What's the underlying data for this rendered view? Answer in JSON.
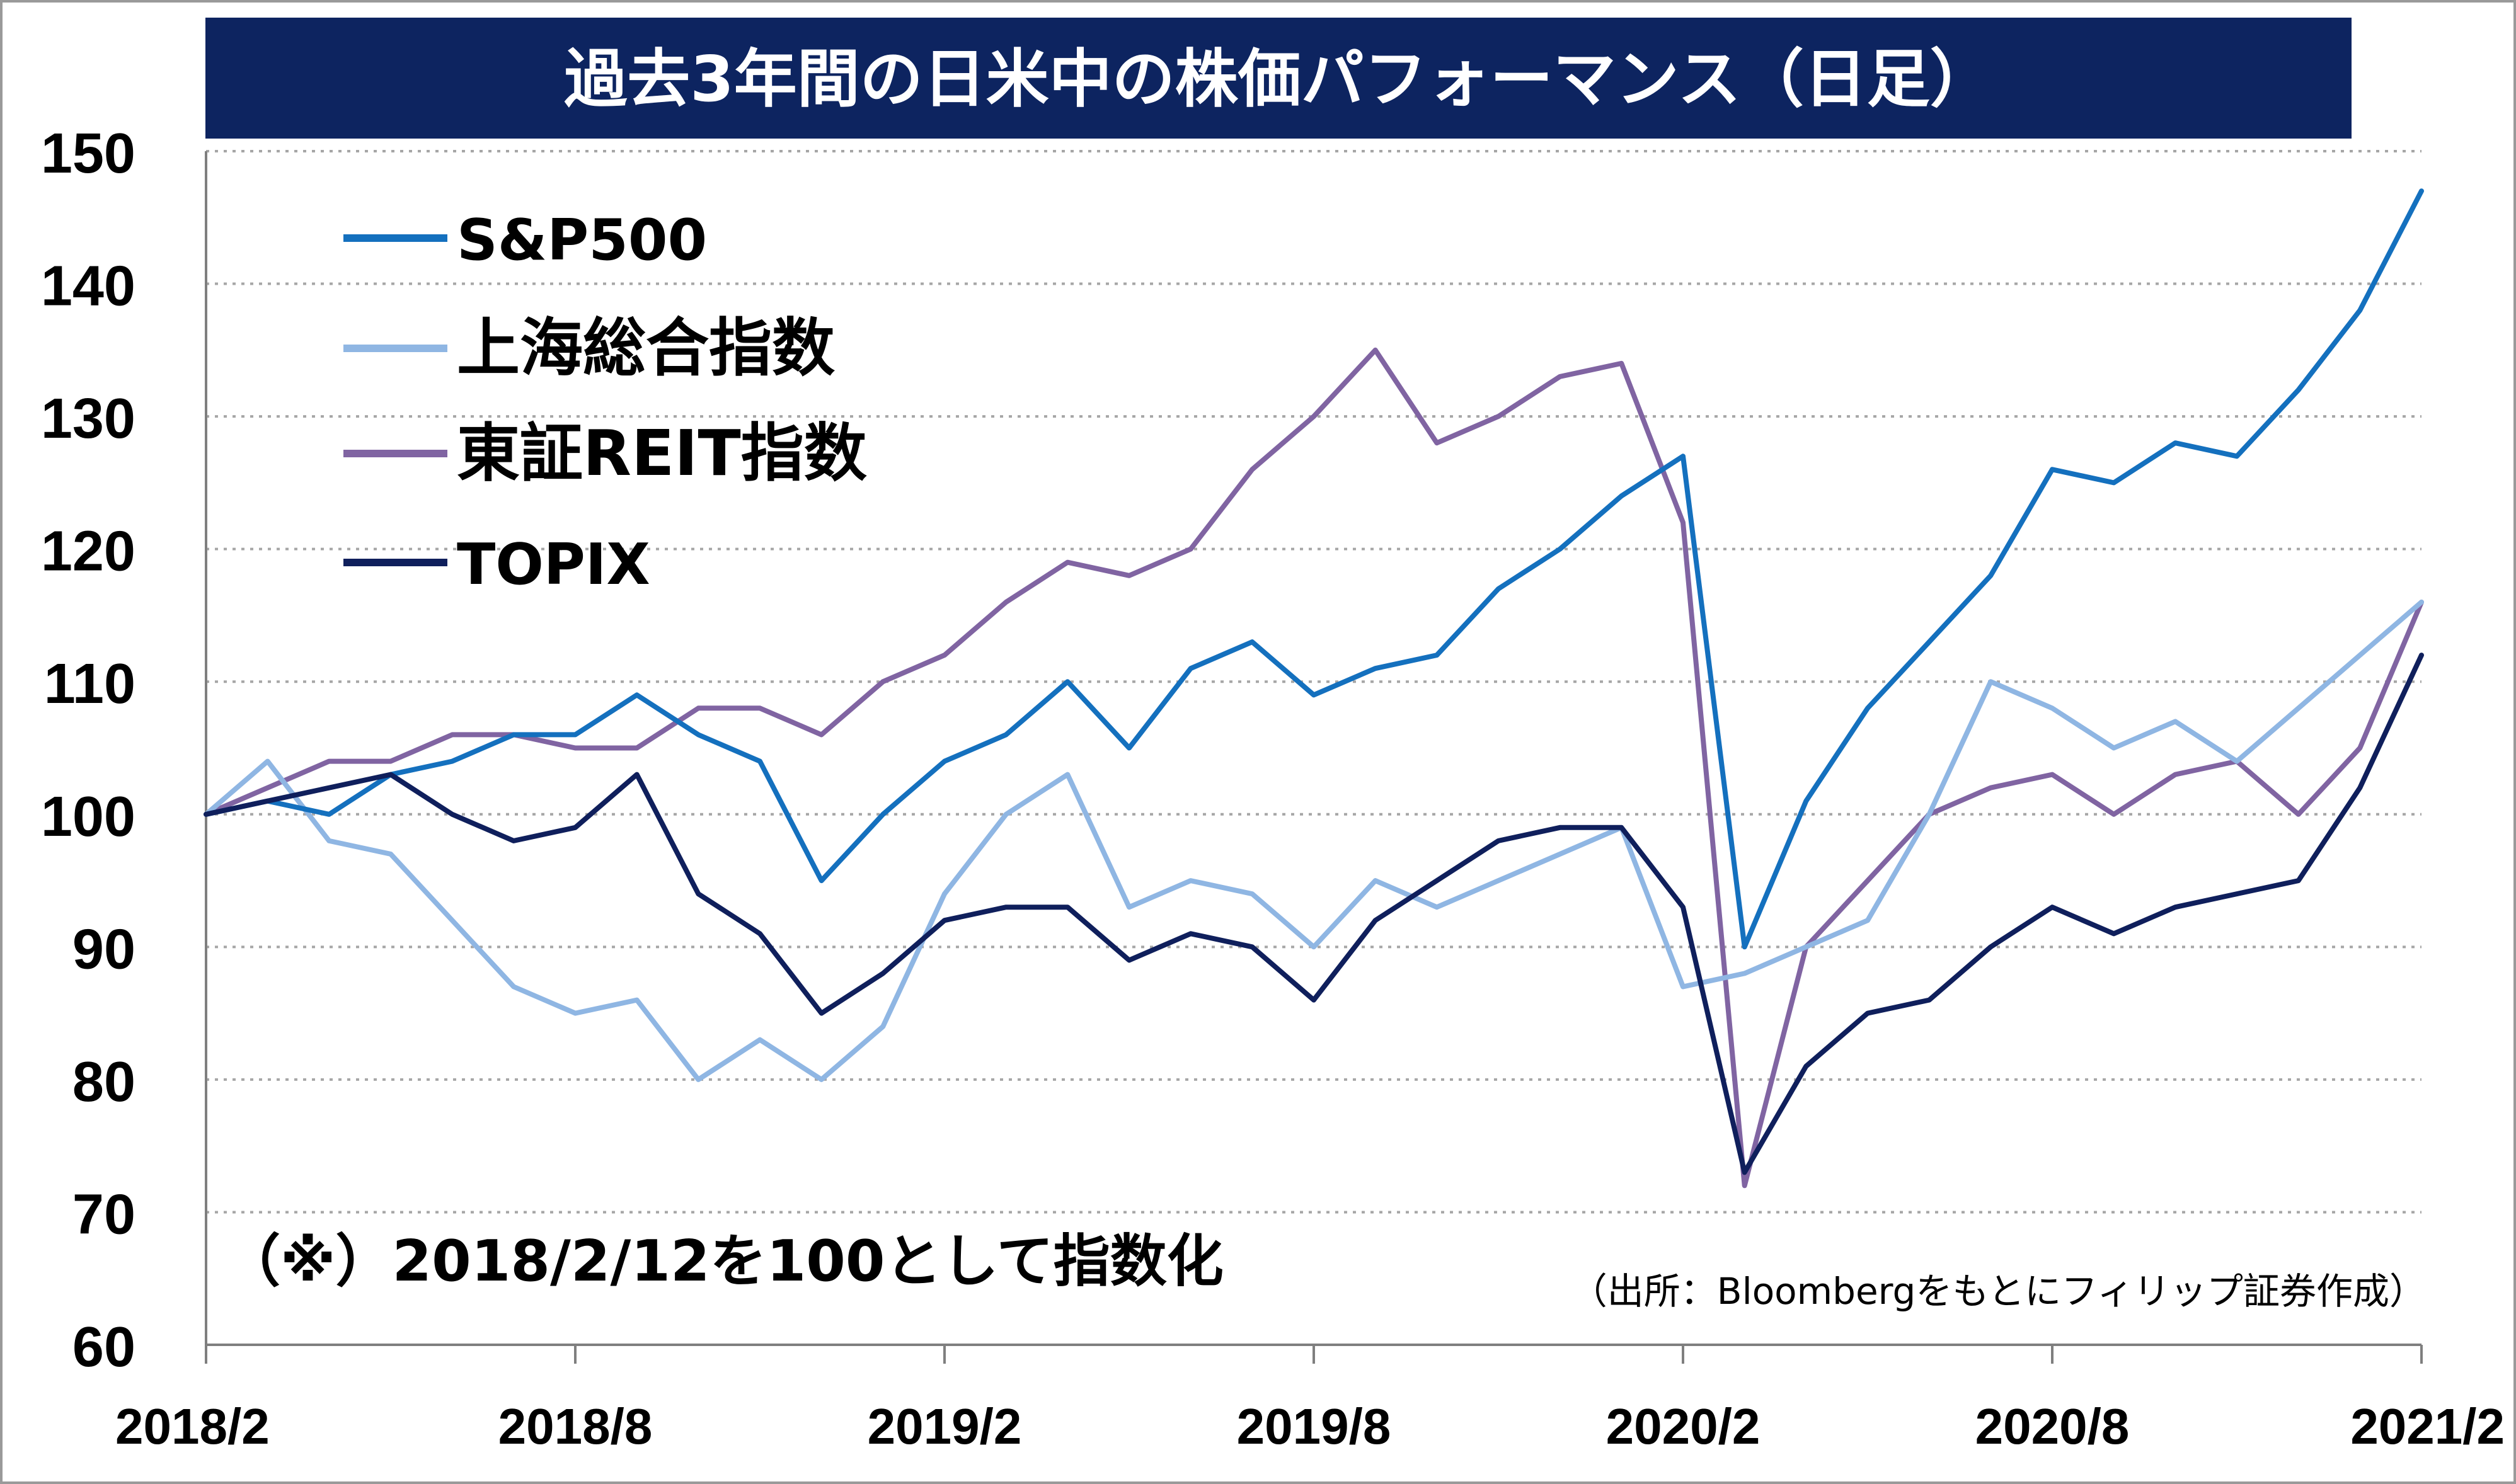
{
  "chart_data": {
    "type": "line",
    "title": "過去3年間の日米中の株価パフォーマンス（日足）",
    "note": "（※）2018/2/12を100として指数化",
    "source": "（出所：Bloombergをもとにフィリップ証券作成）",
    "ylim": [
      60,
      150
    ],
    "yticks": [
      "150",
      "140",
      "130",
      "120",
      "110",
      "100",
      "90",
      "80",
      "70",
      "60"
    ],
    "xlim": [
      "2018/2",
      "2021/2"
    ],
    "xticks": [
      "2018/2",
      "2018/8",
      "2019/2",
      "2019/8",
      "2020/2",
      "2020/8",
      "2021/2"
    ],
    "grid": true,
    "legend_position": "top-left",
    "x": [
      "2018/2",
      "2018/3",
      "2018/4",
      "2018/5",
      "2018/6",
      "2018/7",
      "2018/8",
      "2018/9",
      "2018/10",
      "2018/11",
      "2018/12",
      "2019/1",
      "2019/2",
      "2019/3",
      "2019/4",
      "2019/5",
      "2019/6",
      "2019/7",
      "2019/8",
      "2019/9",
      "2019/10",
      "2019/11",
      "2019/12",
      "2020/1",
      "2020/2",
      "2020/3",
      "2020/4",
      "2020/5",
      "2020/6",
      "2020/7",
      "2020/8",
      "2020/9",
      "2020/10",
      "2020/11",
      "2020/12",
      "2021/1",
      "2021/2"
    ],
    "series": [
      {
        "name": "S&P500",
        "color": "#1470be",
        "values": [
          100,
          101,
          100,
          103,
          104,
          106,
          106,
          109,
          106,
          104,
          95,
          100,
          104,
          106,
          110,
          105,
          111,
          113,
          109,
          111,
          112,
          117,
          120,
          124,
          127,
          90,
          101,
          108,
          113,
          118,
          126,
          125,
          128,
          127,
          132,
          138,
          147
        ]
      },
      {
        "name": "上海総合指数",
        "color": "#8fb6e3",
        "values": [
          100,
          104,
          98,
          97,
          92,
          87,
          85,
          86,
          80,
          83,
          80,
          84,
          94,
          100,
          103,
          93,
          95,
          94,
          90,
          95,
          93,
          95,
          97,
          99,
          87,
          88,
          90,
          92,
          100,
          110,
          108,
          105,
          107,
          104,
          108,
          112,
          116
        ]
      },
      {
        "name": "東証REIT指数",
        "color": "#8064a2",
        "values": [
          100,
          102,
          104,
          104,
          106,
          106,
          105,
          105,
          108,
          108,
          106,
          110,
          112,
          116,
          119,
          118,
          120,
          126,
          130,
          135,
          128,
          130,
          133,
          134,
          122,
          72,
          90,
          95,
          100,
          102,
          103,
          100,
          103,
          104,
          100,
          105,
          116
        ]
      },
      {
        "name": "TOPIX",
        "color": "#0f1f5c",
        "values": [
          100,
          101,
          102,
          103,
          100,
          98,
          99,
          103,
          94,
          91,
          85,
          88,
          92,
          93,
          93,
          89,
          91,
          90,
          86,
          92,
          95,
          98,
          99,
          99,
          93,
          73,
          81,
          85,
          86,
          90,
          93,
          91,
          93,
          94,
          95,
          102,
          112
        ]
      }
    ]
  }
}
